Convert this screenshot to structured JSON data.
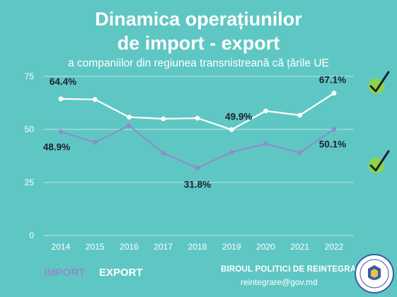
{
  "header": {
    "title_line1": "Dinamica operațiunilor",
    "title_line2": "de import - export",
    "subtitle": "a companiilor din regiunea transnistreană că țările UE"
  },
  "legend": {
    "import_label": "IMPORT",
    "export_label": "EXPORT"
  },
  "footer": {
    "org": "BIROUL POLITICI DE REINTEGRARE",
    "email": "reintegrare@gov.md"
  },
  "colors": {
    "background": "#5fc7c3",
    "import": "#8a8fc9",
    "export": "#ffffff",
    "check_badge": "#8ed44a"
  },
  "icons": {
    "check_icon": "check-icon",
    "seal_icon": "government-seal-icon"
  },
  "chart_data": {
    "type": "line",
    "title": "",
    "xlabel": "",
    "ylabel": "",
    "x": [
      "2014",
      "2015",
      "2016",
      "2017",
      "2018",
      "2019",
      "2020",
      "2021",
      "2022"
    ],
    "ylim": [
      0,
      75
    ],
    "yticks": [
      "0",
      "25",
      "50",
      "75"
    ],
    "grid": true,
    "series": [
      {
        "name": "EXPORT",
        "color": "#ffffff",
        "values": [
          64.4,
          64.1,
          55.8,
          55.0,
          55.3,
          49.9,
          58.7,
          56.7,
          67.1
        ]
      },
      {
        "name": "IMPORT",
        "color": "#8a8fc9",
        "values": [
          48.9,
          43.9,
          51.8,
          38.8,
          31.8,
          39.3,
          43.2,
          39.0,
          50.1
        ]
      }
    ],
    "annotations": [
      {
        "series": "EXPORT",
        "index": 0,
        "text": "64.4%"
      },
      {
        "series": "EXPORT",
        "index": 5,
        "text": "49.9%"
      },
      {
        "series": "EXPORT",
        "index": 8,
        "text": "67.1%"
      },
      {
        "series": "IMPORT",
        "index": 0,
        "text": "48.9%"
      },
      {
        "series": "IMPORT",
        "index": 4,
        "text": "31.8%"
      },
      {
        "series": "IMPORT",
        "index": 8,
        "text": "50.1%"
      }
    ]
  }
}
